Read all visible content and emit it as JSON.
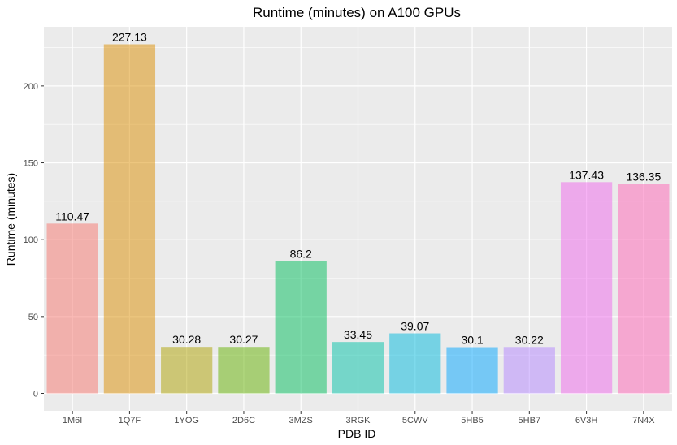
{
  "chart_data": {
    "type": "bar",
    "title": "Runtime (minutes) on A100 GPUs",
    "xlabel": "PDB ID",
    "ylabel": "Runtime (minutes)",
    "categories": [
      "1M6I",
      "1Q7F",
      "1YOG",
      "2D6C",
      "3MZS",
      "3RGK",
      "5CWV",
      "5HB5",
      "5HB7",
      "6V3H",
      "7N4X"
    ],
    "values": [
      110.47,
      227.13,
      30.28,
      30.27,
      86.2,
      33.45,
      39.07,
      30.1,
      30.22,
      137.43,
      136.35
    ],
    "value_labels": [
      "110.47",
      "227.13",
      "30.28",
      "30.27",
      "86.2",
      "33.45",
      "39.07",
      "30.1",
      "30.22",
      "137.43",
      "136.35"
    ],
    "colors": [
      "#F8766D",
      "#DB8E00",
      "#AEA200",
      "#64B200",
      "#00BD5C",
      "#00C1A7",
      "#00BADE",
      "#00A6FF",
      "#B385FF",
      "#EF67EB",
      "#FF63B6"
    ],
    "bar_opacity": 0.5,
    "y_ticks": [
      0,
      50,
      100,
      150,
      200
    ],
    "ylim": [
      -11.36,
      238.49
    ],
    "grid": true,
    "legend": "none",
    "panel_background": "#EBEBEB",
    "grid_color": "#FFFFFF"
  }
}
